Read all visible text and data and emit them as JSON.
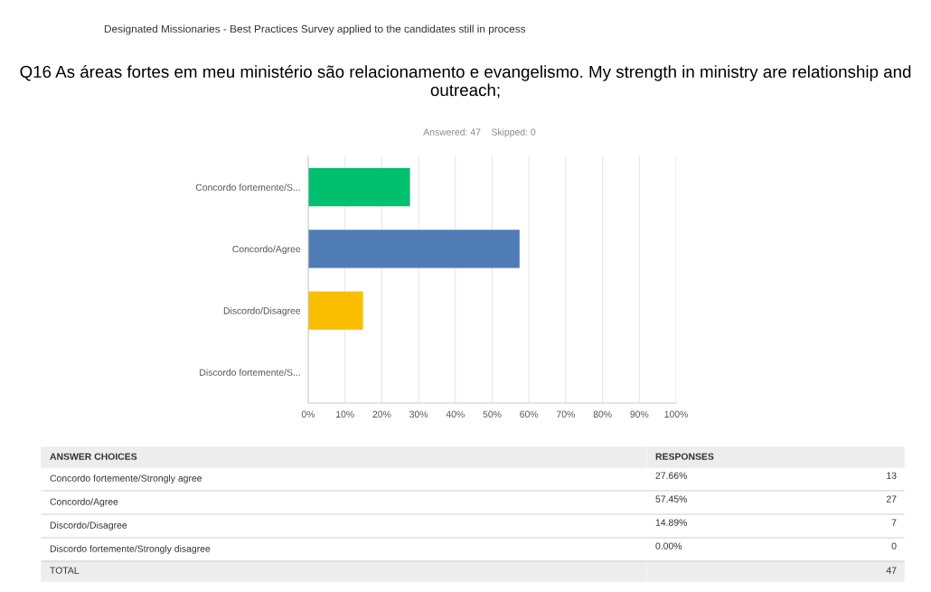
{
  "chart_data": {
    "type": "bar",
    "orientation": "horizontal",
    "title": "Q16 As áreas fortes em meu ministério são relacionamento e evangelismo. My strength in ministry are relationship and outreach;",
    "subtitle": "Answered: 47    Skipped: 0",
    "categories": [
      "Concordo fortemente/S...",
      "Concordo/Agree",
      "Discordo/Disagree",
      "Discordo fortemente/S..."
    ],
    "values": [
      27.66,
      57.45,
      14.89,
      0.0
    ],
    "colors": [
      "#00bf6f",
      "#507cb6",
      "#f9be00",
      "#dd6b23"
    ],
    "xlim": [
      0,
      100
    ],
    "xticks": [
      {
        "value": 0,
        "label": "0%"
      },
      {
        "value": 10,
        "label": "10%"
      },
      {
        "value": 20,
        "label": "20%"
      },
      {
        "value": 30,
        "label": "30%"
      },
      {
        "value": 40,
        "label": "40%"
      },
      {
        "value": 50,
        "label": "50%"
      },
      {
        "value": 60,
        "label": "60%"
      },
      {
        "value": 70,
        "label": "70%"
      },
      {
        "value": 80,
        "label": "80%"
      },
      {
        "value": 90,
        "label": "90%"
      },
      {
        "value": 100,
        "label": "100%"
      }
    ],
    "grid": "x",
    "annotations": [
      "Designated Missionaries - Best Practices Survey applied to the candidates still in process",
      "ANSWER CHOICES",
      "RESPONSES",
      "Concordo fortemente/Strongly agree",
      "Concordo/Agree",
      "Discordo/Disagree",
      "Discordo fortemente/Strongly disagree",
      "13",
      "27",
      "7",
      "0",
      "27.66%",
      "57.45%",
      "14.89%",
      "0.00%",
      "TOTAL",
      "47"
    ]
  }
}
